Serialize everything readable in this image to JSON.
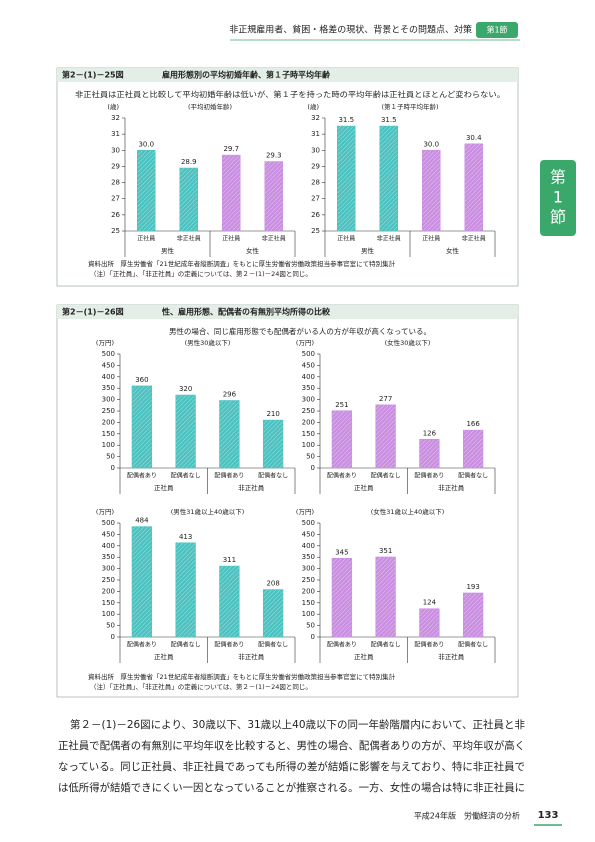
{
  "header": {
    "title": "非正規雇用者、貧困・格差の現状、背景とその問題点、対策",
    "tab": "第1節"
  },
  "side_tab": {
    "lines": [
      "第",
      "1",
      "節"
    ]
  },
  "figure_25": {
    "label": "第2－(1)－25図",
    "title": "雇用形態別の平均初婚年齢、第１子時平均年齢",
    "caption": "非正社員は正社員と比較して平均初婚年齢は低いが、第１子を持った時の平均年齢は正社員とほとんど変わらない。",
    "notes": [
      "資料出所　厚生労働省「21世紀成年者縦断調査」をもとに厚生労働省労働政策担当参事官室にて特別集計",
      "（注）「正社員」、「非正社員」の定義については、第２－(1)－24図と同じ。"
    ]
  },
  "figure_26": {
    "label": "第2－(1)－26図",
    "title": "性、雇用形態、配偶者の有無別平均所得の比較",
    "caption": "男性の場合、同じ雇用形態でも配偶者がいる人の方が年収が高くなっている。",
    "notes": [
      "資料出所　厚生労働省「21世紀成年者縦断調査」をもとに厚生労働省労働政策担当参事官室にて特別集計",
      "（注）「正社員」、「非正社員」の定義については、第２－(1)－24図と同じ。"
    ]
  },
  "chart_data": [
    {
      "type": "bar",
      "title": "(平均初婚年齢)",
      "y_label": "(歳)",
      "categories": [
        "正社員",
        "非正社員",
        "正社員",
        "非正社員"
      ],
      "groups": [
        "男性",
        "女性"
      ],
      "values": [
        30.0,
        28.9,
        29.7,
        29.3
      ],
      "value_labels": [
        "30.0",
        "28.9",
        "29.7",
        "29.3"
      ],
      "colors": [
        "#4cc2c0",
        "#4cc2c0",
        "#c98ee0",
        "#c98ee0"
      ],
      "ylim": [
        25,
        32
      ],
      "yticks": [
        25,
        26,
        27,
        28,
        29,
        30,
        31,
        32
      ]
    },
    {
      "type": "bar",
      "title": "(第１子時平均年齢)",
      "y_label": "(歳)",
      "categories": [
        "正社員",
        "非正社員",
        "正社員",
        "非正社員"
      ],
      "groups": [
        "男性",
        "女性"
      ],
      "values": [
        31.5,
        31.5,
        30.0,
        30.4
      ],
      "value_labels": [
        "31.5",
        "31.5",
        "30.0",
        "30.4"
      ],
      "colors": [
        "#4cc2c0",
        "#4cc2c0",
        "#c98ee0",
        "#c98ee0"
      ],
      "ylim": [
        25,
        32
      ],
      "yticks": [
        25,
        26,
        27,
        28,
        29,
        30,
        31,
        32
      ]
    },
    {
      "type": "bar",
      "title": "(男性30歳以下)",
      "y_label": "(万円)",
      "categories": [
        "配偶者あり",
        "配偶者なし",
        "配偶者あり",
        "配偶者なし"
      ],
      "groups": [
        "正社員",
        "非正社員"
      ],
      "values": [
        360,
        320,
        296,
        210
      ],
      "colors": [
        "#4cc2c0",
        "#4cc2c0",
        "#4cc2c0",
        "#4cc2c0"
      ],
      "ylim": [
        0,
        500
      ],
      "yticks": [
        0,
        50,
        100,
        150,
        200,
        250,
        300,
        350,
        400,
        450,
        500
      ]
    },
    {
      "type": "bar",
      "title": "(女性30歳以下)",
      "y_label": "(万円)",
      "categories": [
        "配偶者あり",
        "配偶者なし",
        "配偶者あり",
        "配偶者なし"
      ],
      "groups": [
        "正社員",
        "非正社員"
      ],
      "values": [
        251,
        277,
        126,
        166
      ],
      "colors": [
        "#c98ee0",
        "#c98ee0",
        "#c98ee0",
        "#c98ee0"
      ],
      "ylim": [
        0,
        500
      ],
      "yticks": [
        0,
        50,
        100,
        150,
        200,
        250,
        300,
        350,
        400,
        450,
        500
      ]
    },
    {
      "type": "bar",
      "title": "(男性31歳以上40歳以下)",
      "y_label": "(万円)",
      "categories": [
        "配偶者あり",
        "配偶者なし",
        "配偶者あり",
        "配偶者なし"
      ],
      "groups": [
        "正社員",
        "非正社員"
      ],
      "values": [
        484,
        413,
        311,
        208
      ],
      "colors": [
        "#4cc2c0",
        "#4cc2c0",
        "#4cc2c0",
        "#4cc2c0"
      ],
      "ylim": [
        0,
        500
      ],
      "yticks": [
        0,
        50,
        100,
        150,
        200,
        250,
        300,
        350,
        400,
        450,
        500
      ]
    },
    {
      "type": "bar",
      "title": "(女性31歳以上40歳以下)",
      "y_label": "(万円)",
      "categories": [
        "配偶者あり",
        "配偶者なし",
        "配偶者あり",
        "配偶者なし"
      ],
      "groups": [
        "正社員",
        "非正社員"
      ],
      "values": [
        345,
        351,
        124,
        193
      ],
      "colors": [
        "#c98ee0",
        "#c98ee0",
        "#c98ee0",
        "#c98ee0"
      ],
      "ylim": [
        0,
        500
      ],
      "yticks": [
        0,
        50,
        100,
        150,
        200,
        250,
        300,
        350,
        400,
        450,
        500
      ]
    }
  ],
  "body_text": {
    "lines": [
      "第２－(1)－26図により、30歳以下、31歳以上40歳以下の同一年齢階層内において、正社員と非",
      "正社員で配偶者の有無別に平均年収を比較すると、男性の場合、配偶者ありの方が、平均年収が高く",
      "なっている。同じ正社員、非正社員であっても所得の差が結婚に影響を与えており、特に非正社員で",
      "は低所得が結婚できにくい一因となっていることが推察される。一方、女性の場合は特に非正社員に"
    ]
  },
  "footer": {
    "text": "平成24年版　労働経済の分析",
    "page": "133"
  }
}
